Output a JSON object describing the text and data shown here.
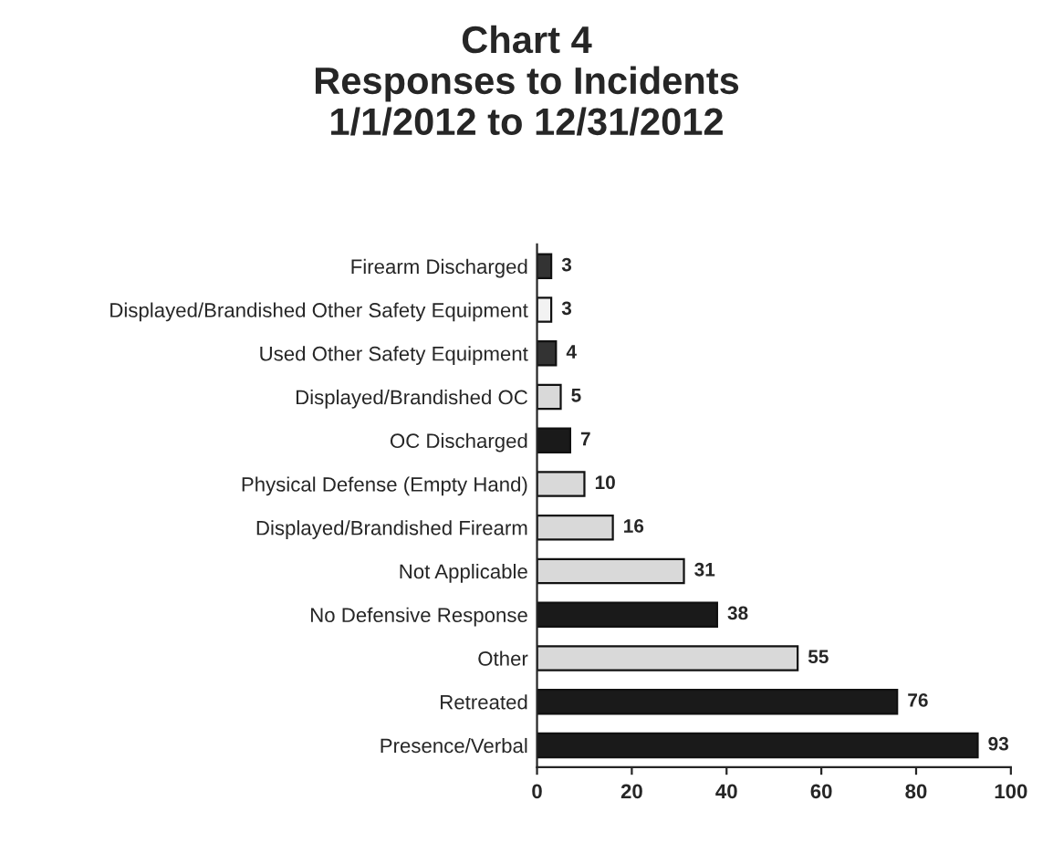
{
  "chart_data": {
    "type": "bar",
    "orientation": "horizontal",
    "title": "Chart 4\nResponses to Incidents\n1/1/2012 to 12/31/2012",
    "categories": [
      "Firearm Discharged",
      "Displayed/Brandished Other Safety Equipment",
      "Used Other Safety Equipment",
      "Displayed/Brandished OC",
      "OC Discharged",
      "Physical Defense (Empty Hand)",
      "Displayed/Brandished Firearm",
      "Not Applicable",
      "No Defensive Response",
      "Other",
      "Retreated",
      "Presence/Verbal"
    ],
    "values": [
      3,
      3,
      4,
      5,
      7,
      10,
      16,
      31,
      38,
      55,
      76,
      93
    ],
    "colors": [
      "#333333",
      "#f2f2f2",
      "#333333",
      "#d9d9d9",
      "#1a1a1a",
      "#d9d9d9",
      "#d9d9d9",
      "#d9d9d9",
      "#1a1a1a",
      "#d9d9d9",
      "#1a1a1a",
      "#1a1a1a"
    ],
    "xlim": [
      0,
      100
    ],
    "xticks": [
      0,
      20,
      40,
      60,
      80,
      100
    ],
    "data_labels": true
  }
}
